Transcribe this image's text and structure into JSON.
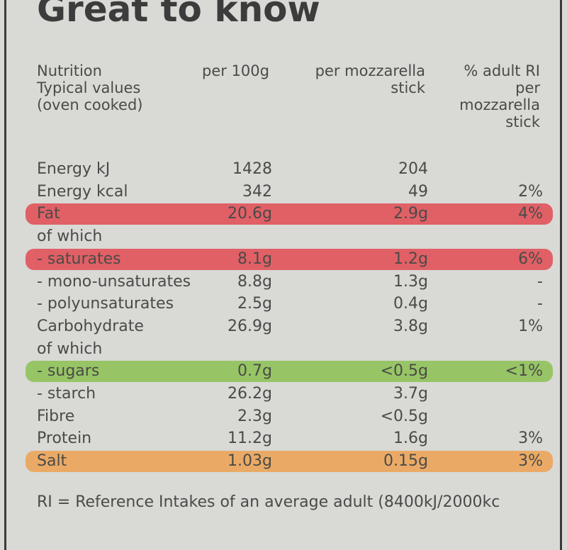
{
  "header": {
    "title": "Great to know"
  },
  "table": {
    "columns": [
      "Nutrition\nTypical values\n(oven cooked)",
      "per 100g",
      "per mozzarella\nstick",
      "% adult RI\nper\nmozzarella\nstick"
    ],
    "rows": [
      {
        "label": "Energy kJ",
        "per_100g": "1428",
        "per_stick": "204"
      },
      {
        "label": "Energy kcal",
        "per_100g": "342",
        "per_stick": "49",
        "ri": "2%"
      },
      {
        "label": "Fat",
        "per_100g": "20.6g",
        "per_stick": "2.9g",
        "ri": "4%",
        "highlight": "#e0525a"
      },
      {
        "label": "of which"
      },
      {
        "label": "- saturates",
        "per_100g": "8.1g",
        "per_stick": "1.2g",
        "ri": "6%",
        "highlight": "#e0525a"
      },
      {
        "label": "- mono-unsaturates",
        "per_100g": "8.8g",
        "per_stick": "1.3g",
        "ri": "-"
      },
      {
        "label": "- polyunsaturates",
        "per_100g": "2.5g",
        "per_stick": "0.4g",
        "ri": "-"
      },
      {
        "label": "Carbohydrate",
        "per_100g": "26.9g",
        "per_stick": "3.8g",
        "ri": "1%"
      },
      {
        "label": "of which"
      },
      {
        "label": "- sugars",
        "per_100g": "0.7g",
        "per_stick": "<0.5g",
        "ri": "<1%",
        "highlight": "#8fc25a"
      },
      {
        "label": "- starch",
        "per_100g": "26.2g",
        "per_stick": "3.7g"
      },
      {
        "label": "Fibre",
        "per_100g": "2.3g",
        "per_stick": "<0.5g"
      },
      {
        "label": "Protein",
        "per_100g": "11.2g",
        "per_stick": "1.6g",
        "ri": "3%"
      },
      {
        "label": "Salt",
        "per_100g": "1.03g",
        "per_stick": "0.15g",
        "ri": "3%",
        "highlight": "#eba45a"
      }
    ]
  },
  "footnote": "RI = Reference Intakes of an average adult (8400kJ/2000kc"
}
